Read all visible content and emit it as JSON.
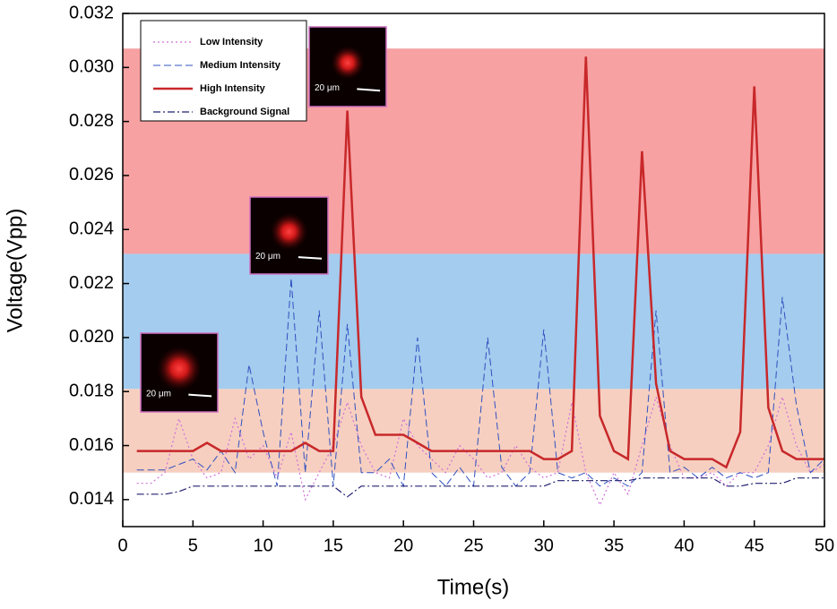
{
  "chart_data": {
    "type": "line",
    "x_label": "Time(s)",
    "y_label": "Voltage(Vpp)",
    "xlim": [
      0,
      50
    ],
    "xticks": [
      0,
      5,
      10,
      15,
      20,
      25,
      30,
      35,
      40,
      45,
      50
    ],
    "ylim": [
      0.013,
      0.032
    ],
    "yticks": [
      0.014,
      0.016,
      0.018,
      {
        "value": 0.02,
        "label": "0.020"
      },
      0.022,
      0.024,
      0.026,
      0.028,
      {
        "value": 0.03,
        "label": "0.030"
      },
      0.032
    ],
    "legend": "upper left",
    "bands": [
      {
        "range": [
          0.015,
          0.0181
        ],
        "color": "#f6cfc0"
      },
      {
        "range": [
          0.0181,
          0.0231
        ],
        "color": "#a3ccee"
      },
      {
        "range": [
          0.0231,
          0.0307
        ],
        "color": "#f7a1a2"
      }
    ],
    "annotations": [
      "20 μm",
      "20 μm",
      "20 μm"
    ],
    "x": [
      1,
      2,
      3,
      4,
      5,
      6,
      7,
      8,
      9,
      10,
      11,
      12,
      13,
      14,
      15,
      16,
      17,
      18,
      19,
      20,
      21,
      22,
      23,
      24,
      25,
      26,
      27,
      28,
      29,
      30,
      31,
      32,
      33,
      34,
      35,
      36,
      37,
      38,
      39,
      40,
      41,
      42,
      43,
      44,
      45,
      46,
      47,
      48,
      49,
      50
    ],
    "series": [
      {
        "name": "Low Intensity",
        "color": "#d070d8",
        "dash": "dotted",
        "values": [
          0.0146,
          0.0146,
          0.015,
          0.017,
          0.0155,
          0.0148,
          0.015,
          0.017,
          0.0155,
          0.016,
          0.0148,
          0.0165,
          0.014,
          0.015,
          0.016,
          0.0176,
          0.016,
          0.015,
          0.0148,
          0.017,
          0.016,
          0.0155,
          0.015,
          0.016,
          0.0155,
          0.0148,
          0.015,
          0.016,
          0.0152,
          0.0148,
          0.015,
          0.0176,
          0.015,
          0.0138,
          0.015,
          0.0142,
          0.016,
          0.0178,
          0.016,
          0.0148,
          0.0148,
          0.015,
          0.0145,
          0.015,
          0.015,
          0.016,
          0.0178,
          0.016,
          0.015,
          0.0153
        ]
      },
      {
        "name": "Medium Intensity",
        "color": "#3050c0",
        "dash": "dashed",
        "values": [
          0.0151,
          0.0151,
          0.0151,
          0.0153,
          0.0155,
          0.0151,
          0.0158,
          0.015,
          0.019,
          0.0165,
          0.0145,
          0.0222,
          0.015,
          0.021,
          0.0145,
          0.0205,
          0.015,
          0.015,
          0.0155,
          0.0145,
          0.02,
          0.015,
          0.0145,
          0.0152,
          0.0145,
          0.02,
          0.0152,
          0.0145,
          0.015,
          0.0203,
          0.015,
          0.0148,
          0.015,
          0.0145,
          0.0148,
          0.0145,
          0.015,
          0.021,
          0.015,
          0.0152,
          0.0148,
          0.0152,
          0.0148,
          0.015,
          0.0148,
          0.015,
          0.0215,
          0.0175,
          0.015,
          0.0155
        ]
      },
      {
        "name": "High Intensity",
        "color": "#c8282a",
        "dash": "solid",
        "values": [
          0.0158,
          0.0158,
          0.0158,
          0.0158,
          0.0158,
          0.0161,
          0.0158,
          0.0158,
          0.0158,
          0.0158,
          0.0158,
          0.0158,
          0.0161,
          0.0158,
          0.0158,
          0.0284,
          0.0178,
          0.0164,
          0.0164,
          0.0164,
          0.0161,
          0.0158,
          0.0158,
          0.0158,
          0.0158,
          0.0158,
          0.0158,
          0.0158,
          0.0158,
          0.0155,
          0.0155,
          0.0158,
          0.0304,
          0.0171,
          0.0158,
          0.0155,
          0.0269,
          0.0183,
          0.0158,
          0.0155,
          0.0155,
          0.0155,
          0.0152,
          0.0165,
          0.0293,
          0.0174,
          0.0158,
          0.0155,
          0.0155,
          0.0155
        ]
      },
      {
        "name": "Background Signal",
        "color": "#202070",
        "dash": "dashdot",
        "values": [
          0.0142,
          0.0142,
          0.0142,
          0.0143,
          0.0145,
          0.0145,
          0.0145,
          0.0145,
          0.0145,
          0.0145,
          0.0145,
          0.0145,
          0.0145,
          0.0145,
          0.0145,
          0.0141,
          0.0145,
          0.0145,
          0.0145,
          0.0145,
          0.0145,
          0.0145,
          0.0145,
          0.0145,
          0.0145,
          0.0145,
          0.0145,
          0.0145,
          0.0145,
          0.0145,
          0.0147,
          0.0147,
          0.0147,
          0.0147,
          0.0147,
          0.0147,
          0.0148,
          0.0148,
          0.0148,
          0.0148,
          0.0148,
          0.0148,
          0.0145,
          0.0145,
          0.0146,
          0.0146,
          0.0146,
          0.0148,
          0.0148,
          0.0148
        ]
      }
    ]
  }
}
